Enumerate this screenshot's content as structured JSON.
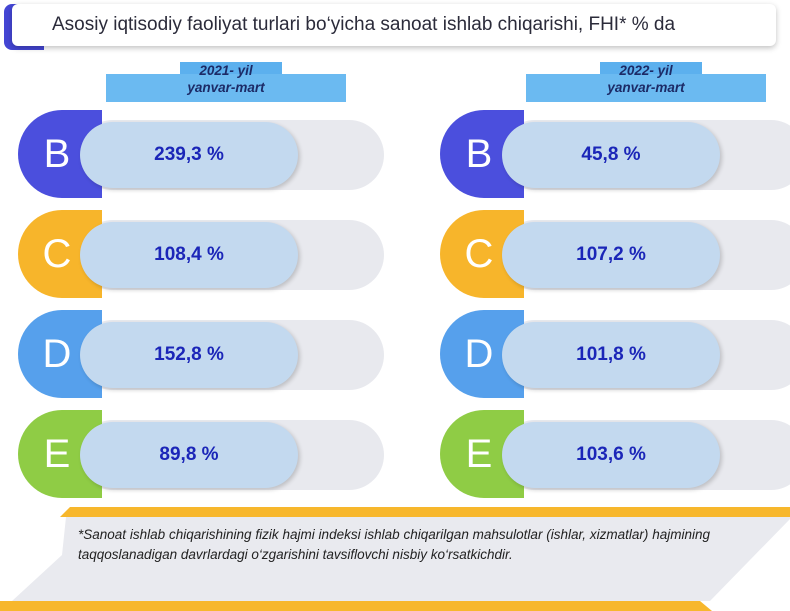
{
  "title": "Asosiy iqtisodiy faoliyat turlari bo‘yicha sanoat ishlab chiqarishi, FHI* % da",
  "chart_data": {
    "type": "table",
    "title": "Asosiy iqtisodiy faoliyat turlari bo‘yicha sanoat ishlab chiqarishi, FHI* % da",
    "categories": [
      "B",
      "C",
      "D",
      "E"
    ],
    "series": [
      {
        "name_line1": "2021- yil",
        "name_line2": "yanvar-mart",
        "values": [
          239.3,
          108.4,
          152.8,
          89.8
        ],
        "labels": [
          "239,3 %",
          "108,4 %",
          "152,8 %",
          "89,8 %"
        ]
      },
      {
        "name_line1": "2022- yil",
        "name_line2": "yanvar-mart",
        "values": [
          45.8,
          107.2,
          101.8,
          103.6
        ],
        "labels": [
          "45,8 %",
          "107,2 %",
          "101,8 %",
          "103,6 %"
        ]
      }
    ],
    "category_colors": [
      "#4b4fdd",
      "#f7b52b",
      "#56a0ec",
      "#8fcc45"
    ]
  },
  "footnote": "*Sanoat ishlab chiqarishining fizik hajmi indeksi ishlab chiqarilgan mahsulotlar (ishlar, xizmatlar) hajmining taqqoslanadigan davrlardagi o‘zgarishini tavsiflovchi nisbiy ko‘rsatkichdir.",
  "colors": {
    "title_accent": "#4446d4",
    "header_blue": "#6bbaf1",
    "value_text": "#1b26b8",
    "footnote_accent": "#f7b72c"
  }
}
